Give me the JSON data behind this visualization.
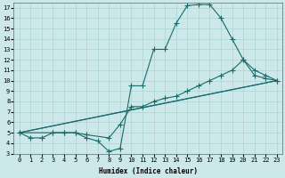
{
  "xlabel": "Humidex (Indice chaleur)",
  "xlim": [
    -0.5,
    23.5
  ],
  "ylim": [
    3,
    17.5
  ],
  "xticks": [
    0,
    1,
    2,
    3,
    4,
    5,
    6,
    7,
    8,
    9,
    10,
    11,
    12,
    13,
    14,
    15,
    16,
    17,
    18,
    19,
    20,
    21,
    22,
    23
  ],
  "yticks": [
    3,
    4,
    5,
    6,
    7,
    8,
    9,
    10,
    11,
    12,
    13,
    14,
    15,
    16,
    17
  ],
  "bg_color": "#cce8e8",
  "grid_color": "#aad4d4",
  "line_color": "#1a6b6b",
  "line1_x": [
    0,
    1,
    2,
    3,
    4,
    5,
    6,
    7,
    8,
    9,
    10,
    11,
    12,
    13,
    14,
    15,
    16,
    17,
    18,
    19,
    20,
    21,
    22,
    23
  ],
  "line1_y": [
    5.0,
    4.5,
    4.5,
    5.0,
    5.0,
    5.0,
    4.5,
    4.2,
    3.2,
    3.5,
    9.5,
    9.5,
    13.0,
    13.0,
    15.5,
    17.2,
    17.3,
    17.3,
    16.0,
    14.0,
    12.0,
    10.5,
    10.2,
    10.0
  ],
  "line2_x": [
    0,
    3,
    4,
    5,
    6,
    8,
    9,
    10,
    11,
    12,
    13,
    14,
    15,
    16,
    17,
    18,
    19,
    20,
    21,
    22,
    23
  ],
  "line2_y": [
    5.0,
    5.0,
    5.0,
    5.0,
    4.8,
    4.5,
    5.8,
    7.5,
    7.5,
    8.0,
    8.3,
    8.5,
    9.0,
    9.5,
    10.0,
    10.5,
    11.0,
    12.0,
    11.0,
    10.5,
    10.0
  ],
  "line3_x": [
    0,
    23
  ],
  "line3_y": [
    5.0,
    10.0
  ],
  "line4_x": [
    0,
    10,
    23
  ],
  "line4_y": [
    5.0,
    7.2,
    10.0
  ]
}
